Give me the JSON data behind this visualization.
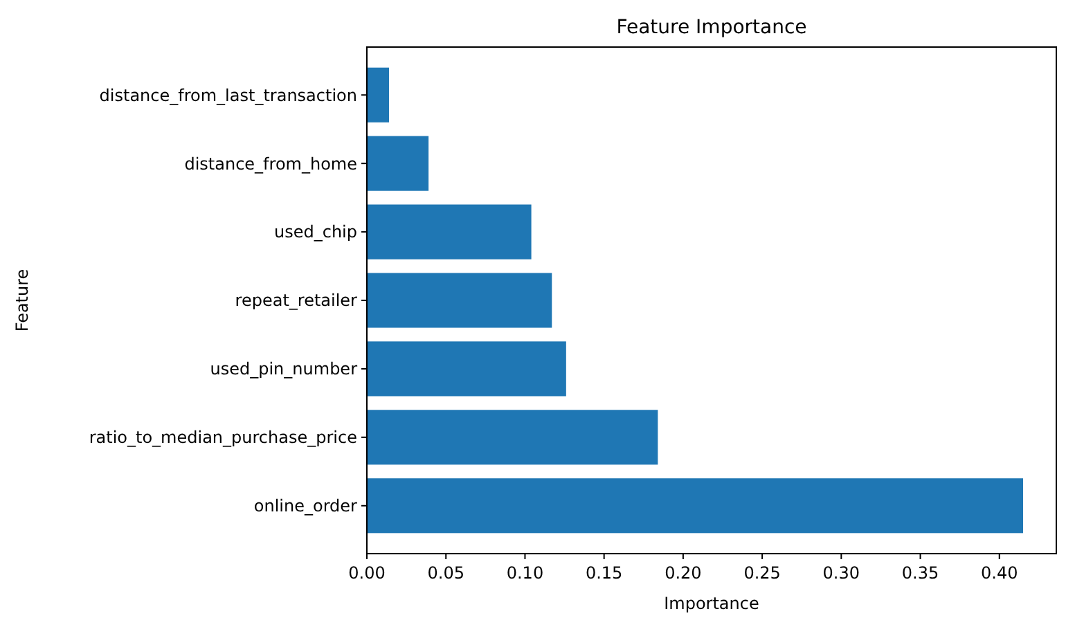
{
  "chart_data": {
    "type": "bar",
    "orientation": "horizontal",
    "title": "Feature Importance",
    "xlabel": "Importance",
    "ylabel": "Feature",
    "categories": [
      "distance_from_last_transaction",
      "distance_from_home",
      "used_chip",
      "repeat_retailer",
      "used_pin_number",
      "ratio_to_median_purchase_price",
      "online_order"
    ],
    "values": [
      0.014,
      0.039,
      0.104,
      0.117,
      0.126,
      0.184,
      0.415
    ],
    "color": "#1f77b4",
    "xlim": [
      0,
      0.436
    ],
    "xticks": [
      {
        "value": 0,
        "label": "0.00"
      },
      {
        "value": 0.05,
        "label": "0.05"
      },
      {
        "value": 0.1,
        "label": "0.10"
      },
      {
        "value": 0.15,
        "label": "0.15"
      },
      {
        "value": 0.2,
        "label": "0.20"
      },
      {
        "value": 0.25,
        "label": "0.25"
      },
      {
        "value": 0.3,
        "label": "0.30"
      },
      {
        "value": 0.35,
        "label": "0.35"
      },
      {
        "value": 0.4,
        "label": "0.40"
      }
    ],
    "grid": false
  }
}
